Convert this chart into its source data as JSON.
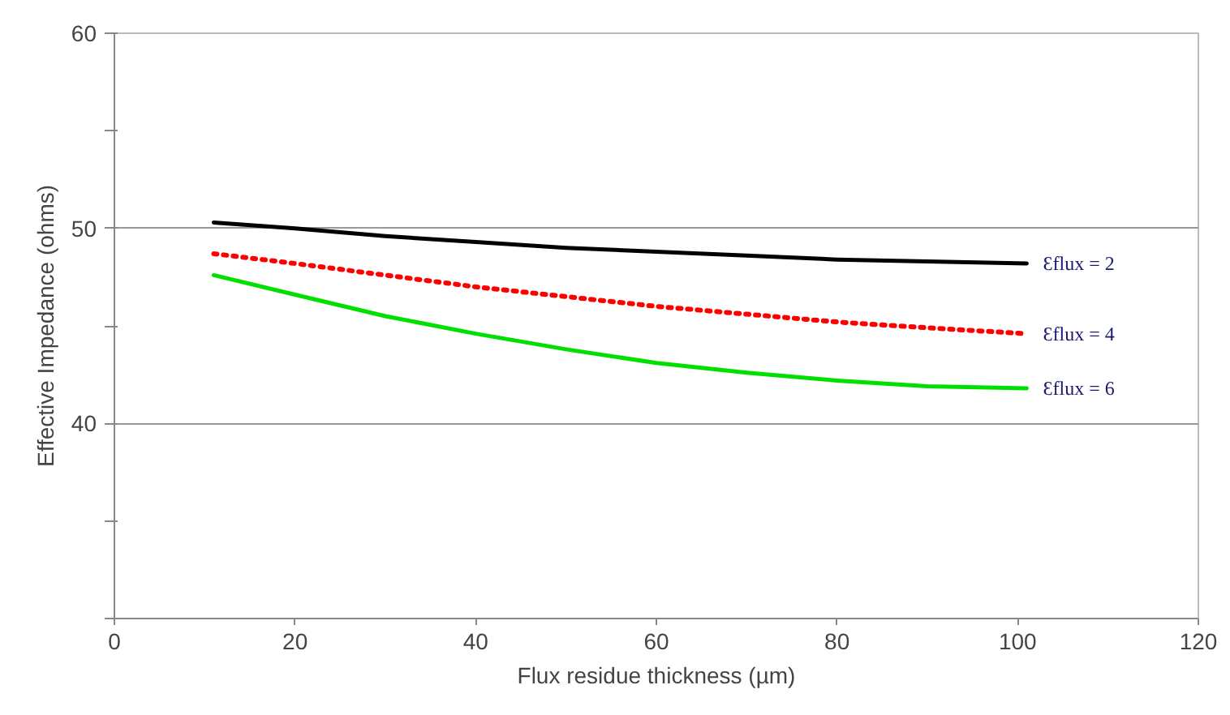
{
  "chart_data": {
    "type": "line",
    "xlabel": "Flux residue thickness (µm)",
    "ylabel": "Effective Impedance (ohms)",
    "xlim": [
      0,
      120
    ],
    "xticks": [
      0,
      20,
      40,
      60,
      80,
      100,
      120
    ],
    "ylim": [
      30,
      60
    ],
    "yticks": [
      {
        "value": 30,
        "label": null
      },
      {
        "value": 35,
        "label": null
      },
      40,
      {
        "value": 45,
        "label": null
      },
      50,
      {
        "value": 55,
        "label": null
      },
      60
    ],
    "grid": "y",
    "x": [
      11,
      20,
      30,
      40,
      50,
      60,
      70,
      80,
      90,
      101
    ],
    "series": [
      {
        "name": "Ɛflux = 2",
        "color": "#000000",
        "line_style": "solid",
        "values": [
          50.3,
          50.0,
          49.6,
          49.3,
          49.0,
          48.8,
          48.6,
          48.4,
          48.3,
          48.2
        ]
      },
      {
        "name": "Ɛflux = 4",
        "color": "#ff0000",
        "line_style": "dotted",
        "values": [
          48.7,
          48.2,
          47.6,
          47.0,
          46.5,
          46.0,
          45.6,
          45.2,
          44.9,
          44.6
        ]
      },
      {
        "name": "Ɛflux = 6",
        "color": "#00e000",
        "line_style": "solid",
        "values": [
          47.6,
          46.6,
          45.5,
          44.6,
          43.8,
          43.1,
          42.6,
          42.2,
          41.9,
          41.8
        ]
      }
    ]
  }
}
